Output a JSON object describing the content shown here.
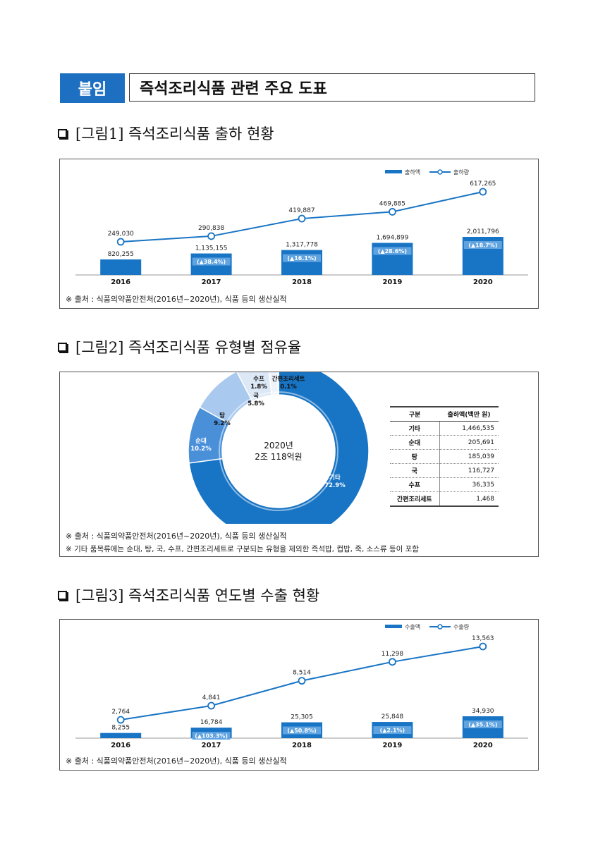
{
  "header": {
    "badge": "붙임",
    "title": "즉석조리식품 관련 주요 도표"
  },
  "fig1": {
    "title": "[그림1] 즉석조리식품 출하 현황",
    "source": "※ 출처 : 식품의약품안전처(2016년~2020년), 식품 등의 생산실적",
    "chart_data": {
      "type": "bar",
      "categories": [
        "2016",
        "2017",
        "2018",
        "2019",
        "2020"
      ],
      "series": [
        {
          "name": "출하액",
          "type": "bar",
          "values": [
            820255,
            1135155,
            1317778,
            1694899,
            2011796
          ],
          "color": "#1874c4"
        },
        {
          "name": "출하량",
          "type": "line",
          "values": [
            249030,
            290838,
            419887,
            469885,
            617265
          ],
          "color": "#1874c4"
        }
      ],
      "value_labels": {
        "bar": [
          "820,255",
          "1,135,155",
          "1,317,778",
          "1,694,899",
          "2,011,796"
        ],
        "line": [
          "249,030",
          "290,838",
          "419,887",
          "469,885",
          "617,265"
        ],
        "growth": [
          "",
          "(▲38.4%)",
          "(▲16.1%)",
          "(▲28.6%)",
          "(▲18.7%)"
        ]
      }
    }
  },
  "fig2": {
    "title": "[그림2] 즉석조리식품 유형별 점유율",
    "center_line1": "2020년",
    "center_line2": "2조 118억원",
    "source": "※ 출처 : 식품의약품안전처(2016년~2020년), 식품 등의 생산실적",
    "note2": "※ 기타 품목류에는 순대, 탕, 국, 수프, 간편조리세트로 구분되는 유형을 제외한 즉석밥, 컵밥, 죽, 소스류 등이 포함",
    "table": {
      "headers": [
        "구분",
        "출하액(백만 원)"
      ],
      "rows": [
        [
          "기타",
          "1,466,535"
        ],
        [
          "순대",
          "205,691"
        ],
        [
          "탕",
          "185,039"
        ],
        [
          "국",
          "116,727"
        ],
        [
          "수프",
          "36,335"
        ],
        [
          "간편조리세트",
          "1,468"
        ]
      ]
    },
    "chart_data": {
      "type": "pie",
      "categories": [
        "기타",
        "순대",
        "탕",
        "국",
        "수프",
        "간편조리세트"
      ],
      "values": [
        72.9,
        10.2,
        9.2,
        5.8,
        1.8,
        0.1
      ],
      "labels": [
        "72.9%",
        "10.2%",
        "9.2%",
        "5.8%",
        "1.8%",
        "0.1%"
      ],
      "colors": [
        "#1874c4",
        "#4a90d9",
        "#a9c9ee",
        "#dce8f6",
        "#eef3fa",
        "#f5f8fc"
      ]
    }
  },
  "fig3": {
    "title": "[그림3] 즉석조리식품 연도별 수출 현황",
    "source": "※ 출처 : 식품의약품안전처(2016년~2020년), 식품 등의 생산실적",
    "chart_data": {
      "type": "bar",
      "categories": [
        "2016",
        "2017",
        "2018",
        "2019",
        "2020"
      ],
      "series": [
        {
          "name": "수출액",
          "type": "bar",
          "values": [
            8255,
            16784,
            25305,
            25848,
            34930
          ],
          "color": "#1874c4"
        },
        {
          "name": "수출량",
          "type": "line",
          "values": [
            2764,
            4841,
            8514,
            11298,
            13563
          ],
          "color": "#1874c4"
        }
      ],
      "value_labels": {
        "bar": [
          "8,255",
          "16,784",
          "25,305",
          "25,848",
          "34,930"
        ],
        "line": [
          "2,764",
          "4,841",
          "8,514",
          "11,298",
          "13,563"
        ],
        "growth": [
          "",
          "(▲103.3%)",
          "(▲50.8%)",
          "(▲2.1%)",
          "(▲35.1%)"
        ]
      }
    }
  }
}
